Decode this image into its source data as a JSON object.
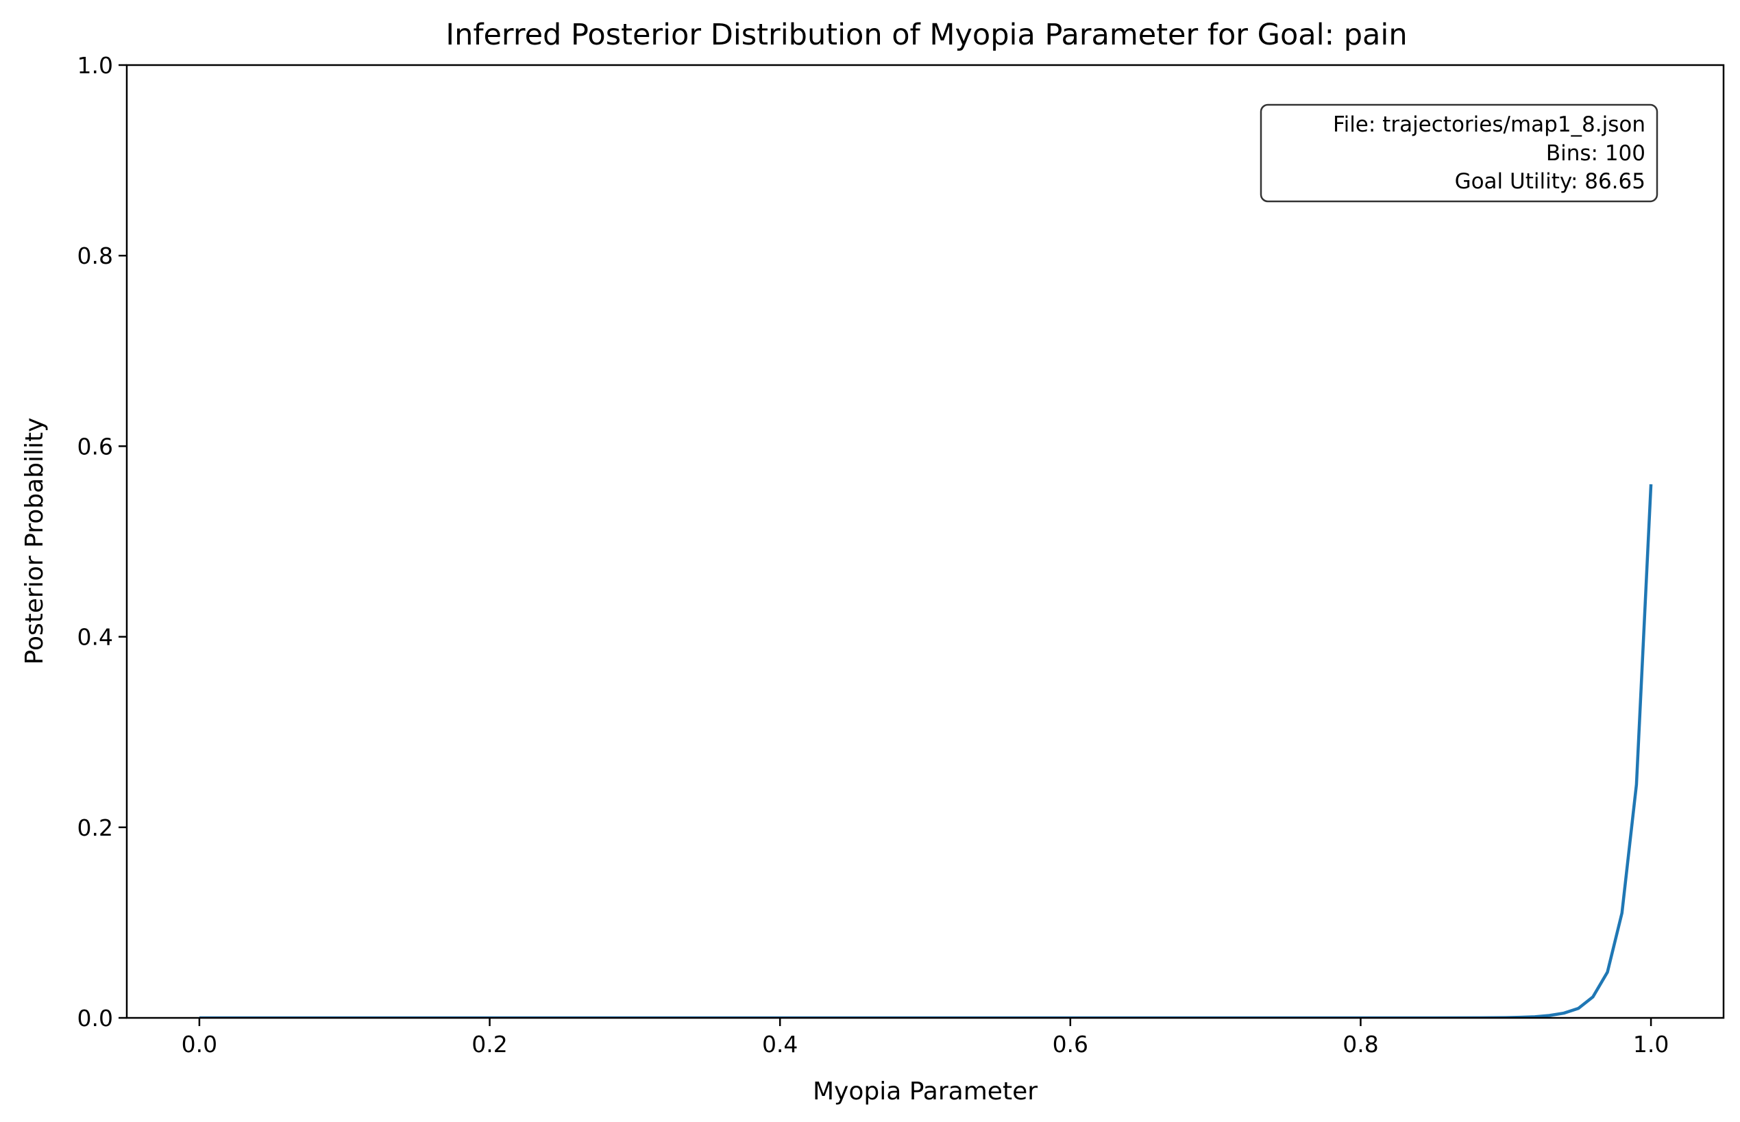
{
  "chart_data": {
    "type": "line",
    "title": "Inferred Posterior Distribution of Myopia Parameter for Goal: pain",
    "xlabel": "Myopia Parameter",
    "ylabel": "Posterior Probability",
    "xlim": [
      -0.05,
      1.05
    ],
    "ylim": [
      0,
      1
    ],
    "x_ticks": [
      "0.0",
      "0.2",
      "0.4",
      "0.6",
      "0.8",
      "1.0"
    ],
    "y_ticks": [
      "0.0",
      "0.2",
      "0.4",
      "0.6",
      "0.8",
      "1.0"
    ],
    "grid": false,
    "line_color": "#1f77b4",
    "series": [
      {
        "x": [
          0.0,
          0.05,
          0.1,
          0.15,
          0.2,
          0.25,
          0.3,
          0.35,
          0.4,
          0.45,
          0.5,
          0.55,
          0.6,
          0.65,
          0.7,
          0.75,
          0.8,
          0.85,
          0.88,
          0.9,
          0.91,
          0.92,
          0.93,
          0.94,
          0.95,
          0.96,
          0.97,
          0.98,
          0.99,
          1.0
        ],
        "y": [
          0,
          0,
          0,
          0,
          0,
          0,
          0,
          0,
          0,
          0,
          0,
          0,
          0,
          0,
          0,
          0,
          0,
          0,
          0.0001,
          0.0003,
          0.0006,
          0.0012,
          0.0025,
          0.005,
          0.01,
          0.022,
          0.048,
          0.11,
          0.245,
          0.56
        ]
      }
    ],
    "annotation": {
      "lines": [
        "File: trajectories/map1_8.json",
        "Bins: 100",
        "Goal Utility: 86.65"
      ],
      "placement": "top-right"
    }
  }
}
